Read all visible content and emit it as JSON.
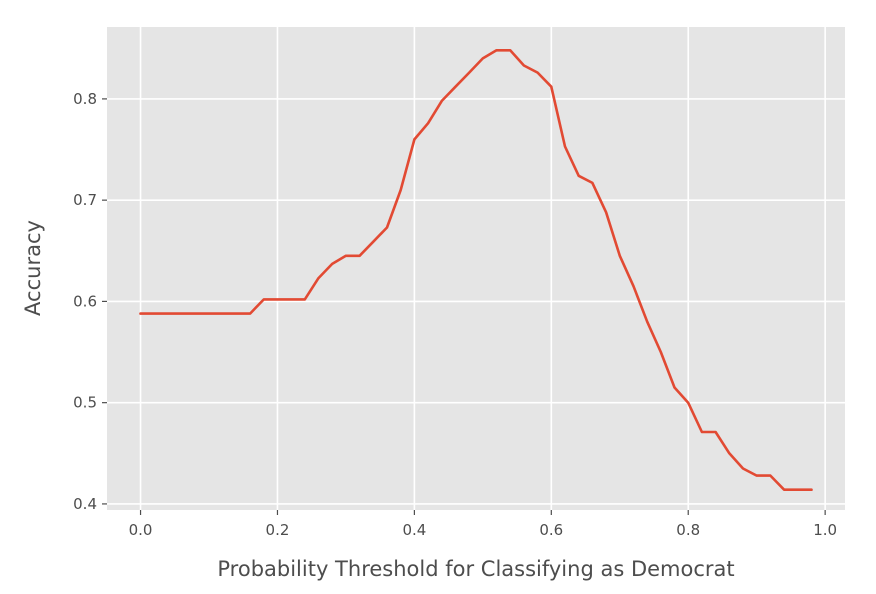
{
  "chart_data": {
    "type": "line",
    "title": "",
    "xlabel": "Probability Threshold for Classifying as Democrat",
    "ylabel": "Accuracy",
    "xlim": [
      -0.049,
      1.029
    ],
    "ylim": [
      0.394,
      0.871
    ],
    "x_ticks": [
      0.0,
      0.2,
      0.4,
      0.6,
      0.8,
      1.0
    ],
    "x_tick_labels": [
      "0.0",
      "0.2",
      "0.4",
      "0.6",
      "0.8",
      "1.0"
    ],
    "y_ticks": [
      0.4,
      0.5,
      0.6,
      0.7,
      0.8
    ],
    "y_tick_labels": [
      "0.4",
      "0.5",
      "0.6",
      "0.7",
      "0.8"
    ],
    "grid": true,
    "background": "#e5e5e5",
    "series": [
      {
        "color": "#e24a33",
        "x": [
          0.0,
          0.02,
          0.04,
          0.06,
          0.08,
          0.1,
          0.12,
          0.14,
          0.16,
          0.18,
          0.2,
          0.22,
          0.24,
          0.26,
          0.28,
          0.3,
          0.32,
          0.34,
          0.36,
          0.38,
          0.4,
          0.42,
          0.44,
          0.46,
          0.48,
          0.5,
          0.52,
          0.54,
          0.56,
          0.58,
          0.6,
          0.62,
          0.64,
          0.66,
          0.68,
          0.7,
          0.72,
          0.74,
          0.76,
          0.78,
          0.8,
          0.82,
          0.84,
          0.86,
          0.88,
          0.9,
          0.92,
          0.94,
          0.96,
          0.98
        ],
        "values": [
          0.588,
          0.588,
          0.588,
          0.588,
          0.588,
          0.588,
          0.588,
          0.588,
          0.588,
          0.602,
          0.602,
          0.602,
          0.602,
          0.623,
          0.637,
          0.645,
          0.645,
          0.659,
          0.673,
          0.71,
          0.76,
          0.776,
          0.798,
          0.812,
          0.826,
          0.84,
          0.848,
          0.848,
          0.833,
          0.826,
          0.812,
          0.753,
          0.724,
          0.717,
          0.688,
          0.645,
          0.615,
          0.58,
          0.55,
          0.515,
          0.5,
          0.471,
          0.471,
          0.45,
          0.435,
          0.428,
          0.428,
          0.414,
          0.414,
          0.414
        ]
      }
    ]
  }
}
